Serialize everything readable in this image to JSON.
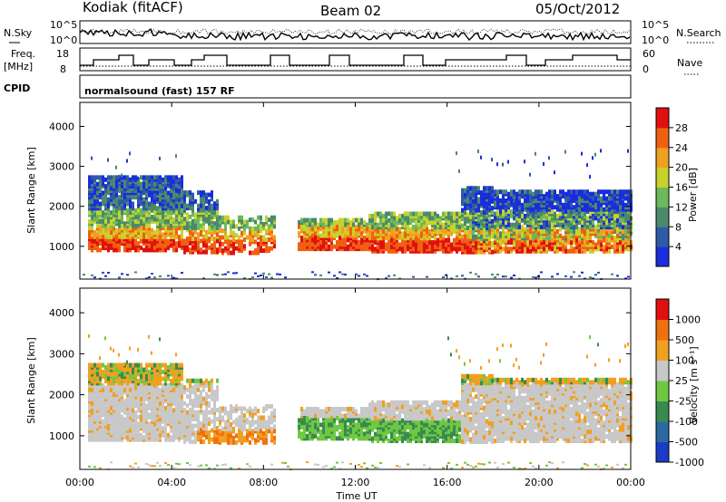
{
  "header": {
    "station": "Kodiak (fitACF)",
    "beam": "Beam 02",
    "date": "05/Oct/2012"
  },
  "top_strips": {
    "left_labels": {
      "nsky": "N.Sky",
      "freq1": "Freq.",
      "freq2": "[MHz]",
      "cpid": "CPID"
    },
    "right_labels": {
      "nsearch": "N.Search",
      "nave": "Nave"
    },
    "nsky_ticks_left": [
      "10^5",
      "10^0"
    ],
    "nsky_ticks_right": [
      "10^5",
      "10^0"
    ],
    "freq_ticks": [
      "18",
      "8"
    ],
    "nave_ticks": [
      "60",
      "0"
    ],
    "cpid_text": "normalsound (fast) 157 RF"
  },
  "chart_data": [
    {
      "type": "heatmap",
      "panel": "power",
      "ylabel": "Slant Range [km]",
      "ylim": [
        180,
        4600
      ],
      "yticks": [
        "1000",
        "2000",
        "3000",
        "4000"
      ],
      "colorbar": {
        "label": "Power [dB]",
        "ticks": [
          "4",
          "8",
          "12",
          "16",
          "20",
          "24",
          "28"
        ],
        "colors": [
          "#1a2cdc",
          "#2e5aa8",
          "#4a8a6a",
          "#6cb85c",
          "#c8d22c",
          "#f0a020",
          "#f06010",
          "#e01010"
        ]
      },
      "bands": [
        {
          "t0": 0.3,
          "t1": 4.5,
          "r0": 850,
          "r1": 2600,
          "level": "high"
        },
        {
          "t0": 4.5,
          "t1": 8.5,
          "r0": 800,
          "r1": 1600,
          "level": "high"
        },
        {
          "t0": 9.5,
          "t1": 16.5,
          "r0": 850,
          "r1": 1600,
          "level": "high"
        },
        {
          "t0": 16.5,
          "t1": 24.0,
          "r0": 800,
          "r1": 2300,
          "level": "mid"
        }
      ]
    },
    {
      "type": "heatmap",
      "panel": "velocity",
      "ylabel": "Slant Range [km]",
      "xlabel": "Time UT",
      "ylim": [
        180,
        4600
      ],
      "yticks": [
        "1000",
        "2000",
        "3000",
        "4000"
      ],
      "xticks": [
        "00:00",
        "04:00",
        "08:00",
        "12:00",
        "16:00",
        "20:00",
        "00:00"
      ],
      "colorbar": {
        "label": "Velocity [m s⁻¹]",
        "ticks": [
          "1000",
          "500",
          "100",
          "25",
          "-25",
          "-100",
          "-500",
          "-1000"
        ],
        "colors": [
          "#1a3cc8",
          "#2a6aa0",
          "#3a8a50",
          "#6ec840",
          "#c8c8c8",
          "#f0a020",
          "#f07010",
          "#e01010"
        ]
      }
    }
  ]
}
